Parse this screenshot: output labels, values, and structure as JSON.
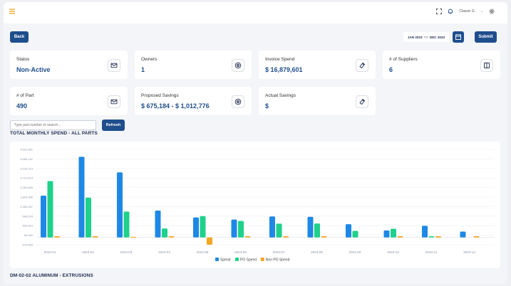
{
  "header": {
    "hamburger_icon": "menu-icon",
    "user_name": "Classic G",
    "icons": [
      "fullscreen-icon",
      "notification-icon",
      "settings-icon"
    ]
  },
  "toolbar": {
    "back_label": "Back",
    "date_from": "JAN 2023",
    "date_to_word": "TO",
    "date_to": "DEC 2023",
    "submit_label": "Submit"
  },
  "cards": [
    {
      "label": "Status",
      "value": "Non-Active",
      "icon": "mail-icon"
    },
    {
      "label": "Owners",
      "value": "1",
      "icon": "target-icon"
    },
    {
      "label": "Invoice Spend",
      "value": "$ 16,879,601",
      "icon": "tag-icon"
    },
    {
      "label": "# of Suppliers",
      "value": "6",
      "icon": "book-icon"
    },
    {
      "label": "# of Part",
      "value": "490",
      "icon": "mail-icon"
    },
    {
      "label": "Proposed Savings",
      "value": "$ 675,184 - $ 1,012,776",
      "icon": "target-icon"
    },
    {
      "label": "Actual Savings",
      "value": "$",
      "icon": "tag-icon"
    }
  ],
  "search": {
    "placeholder": "Type part number to search...",
    "refresh_label": "Refresh"
  },
  "chart_title": "TOTAL MONTHLY SPEND - ALL PARTS",
  "footer_title": "DM-02-02 ALUMINUM - EXTRUSIONS",
  "colors": {
    "spend": "#1e88e5",
    "po_spend": "#1fd18b",
    "non_po_spend": "#f5a623",
    "primary": "#1f4e8c"
  },
  "chart_data": {
    "type": "bar",
    "categories": [
      "2023-01",
      "2023-02",
      "2023-03",
      "2023-04",
      "2023-05",
      "2023-06",
      "2023-07",
      "2023-08",
      "2023-09",
      "2023-10",
      "2023-11",
      "2023-12"
    ],
    "y_ticks": [
      "4,531,851",
      "3,683,152",
      "3,142,313",
      "2,701,614",
      "2,262,855",
      "1,823,396",
      "1,383,337",
      "943,578",
      "503,819",
      "64,060",
      "-375,699"
    ],
    "ylim": [
      -375699,
      4531851
    ],
    "series": [
      {
        "name": "Spend",
        "values": [
          2150000,
          4150000,
          3350000,
          1380000,
          1030000,
          920000,
          1080000,
          1060000,
          680000,
          360000,
          600000,
          300000
        ]
      },
      {
        "name": "PO Spend",
        "values": [
          2900000,
          2050000,
          1330000,
          460000,
          1100000,
          850000,
          710000,
          720000,
          340000,
          450000,
          60000,
          0
        ]
      },
      {
        "name": "Non PO Spend",
        "values": [
          64060,
          64060,
          30000,
          64060,
          -375699,
          64060,
          64060,
          64060,
          0,
          64060,
          64060,
          64060
        ]
      }
    ],
    "legend_position": "bottom"
  }
}
